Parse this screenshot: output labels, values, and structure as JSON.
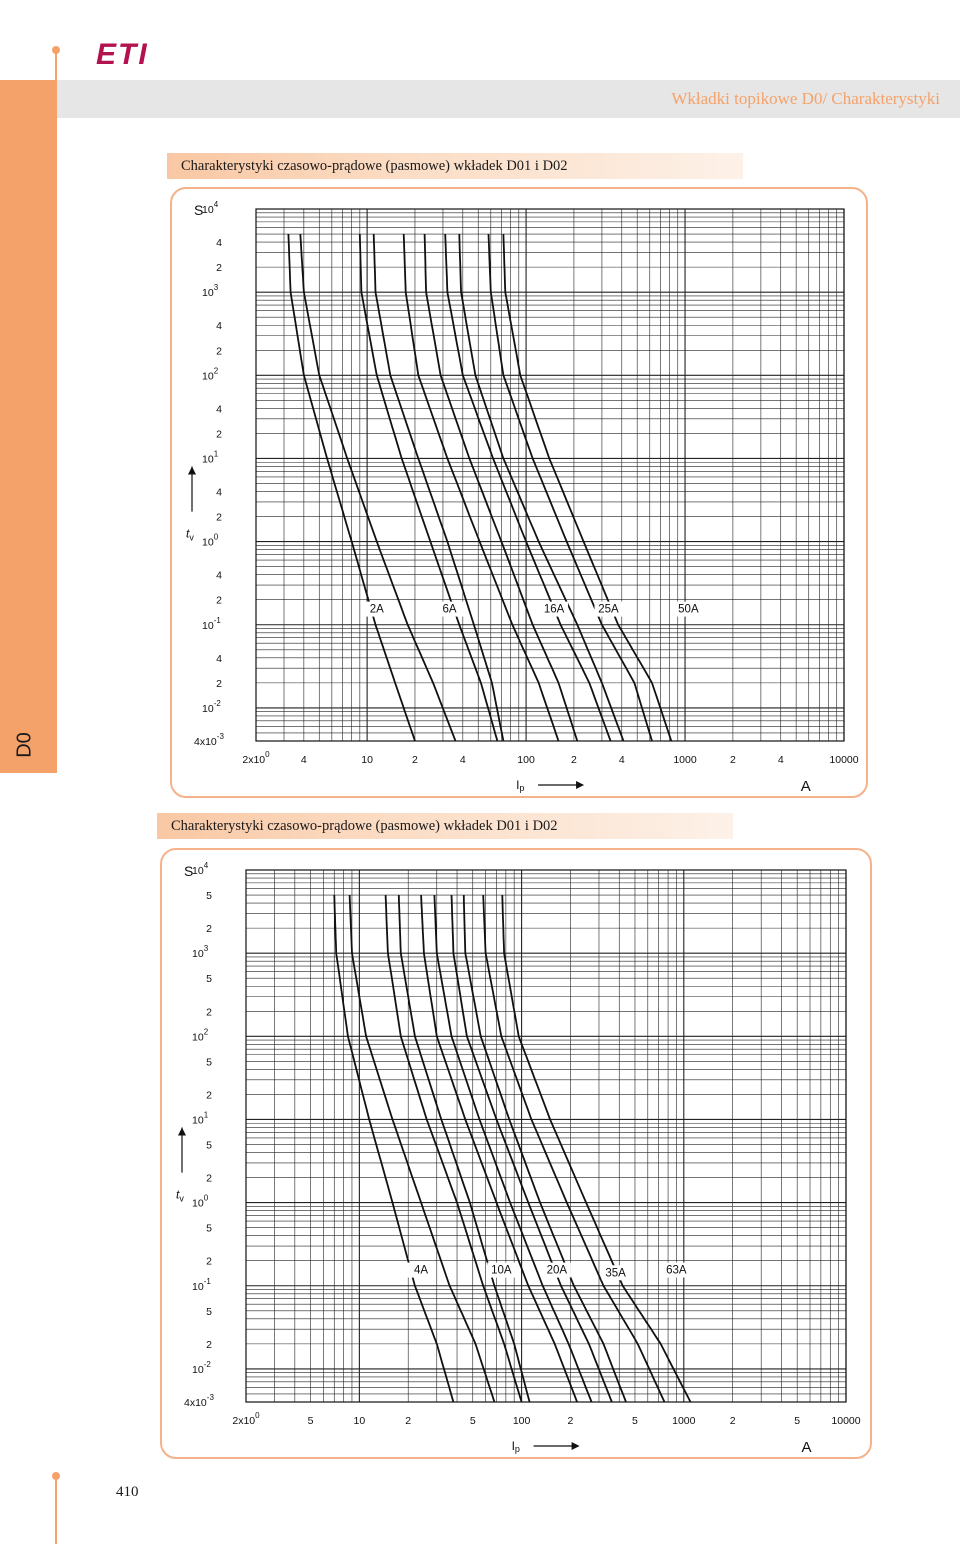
{
  "brand": {
    "logo": "ETI",
    "accent_color": "#f5a26a",
    "logo_color": "#b3124f"
  },
  "header": {
    "title": "Wkładki topikowe D0/ Charakterystyki"
  },
  "side_tab": {
    "label": "D0"
  },
  "sections": [
    {
      "title": "Charakterystyki czasowo-prądowe (pasmowe) wkładek D01 i D02"
    },
    {
      "title": "Charakterystyki czasowo-prądowe (pasmowe) wkładek D01 i D02"
    }
  ],
  "page_number": "410",
  "chart_data": [
    {
      "type": "line",
      "title": "",
      "xscale": "log",
      "yscale": "log",
      "xlim": [
        2,
        10000
      ],
      "ylim": [
        0.004,
        10000
      ],
      "ylabel": "tv",
      "y_unit": "S",
      "xlabel": "Ip",
      "x_unit": "A",
      "grid": true,
      "y_ticks": [
        {
          "v": 10000,
          "base": "10",
          "exp": "4",
          "prefix": ""
        },
        {
          "v": 4000,
          "text": "4"
        },
        {
          "v": 2000,
          "text": "2"
        },
        {
          "v": 1000,
          "base": "10",
          "exp": "3",
          "prefix": ""
        },
        {
          "v": 400,
          "text": "4"
        },
        {
          "v": 200,
          "text": "2"
        },
        {
          "v": 100,
          "base": "10",
          "exp": "2",
          "prefix": ""
        },
        {
          "v": 40,
          "text": "4"
        },
        {
          "v": 20,
          "text": "2"
        },
        {
          "v": 10,
          "base": "10",
          "exp": "1",
          "prefix": ""
        },
        {
          "v": 4,
          "text": "4"
        },
        {
          "v": 2,
          "text": "2"
        },
        {
          "v": 1,
          "base": "10",
          "exp": "0",
          "prefix": ""
        },
        {
          "v": 0.4,
          "text": "4"
        },
        {
          "v": 0.2,
          "text": "2"
        },
        {
          "v": 0.1,
          "base": "10",
          "exp": "-1",
          "prefix": ""
        },
        {
          "v": 0.04,
          "text": "4"
        },
        {
          "v": 0.02,
          "text": "2"
        },
        {
          "v": 0.01,
          "base": "10",
          "exp": "-2",
          "prefix": ""
        },
        {
          "v": 0.004,
          "base": "10",
          "exp": "-3",
          "prefix": "4x"
        }
      ],
      "x_ticks": [
        {
          "v": 2,
          "base": "10",
          "exp": "0",
          "prefix": "2x"
        },
        {
          "v": 4,
          "text": "4"
        },
        {
          "v": 10,
          "text": "10"
        },
        {
          "v": 20,
          "text": "2"
        },
        {
          "v": 40,
          "text": "4"
        },
        {
          "v": 100,
          "text": "100"
        },
        {
          "v": 200,
          "text": "2"
        },
        {
          "v": 400,
          "text": "4"
        },
        {
          "v": 1000,
          "text": "1000"
        },
        {
          "v": 2000,
          "text": "2"
        },
        {
          "v": 4000,
          "text": "4"
        },
        {
          "v": 10000,
          "text": "10000"
        }
      ],
      "series": [
        {
          "x": [
            3.2,
            3.3,
            4.0,
            5.6,
            8.0,
            11.3,
            15.0,
            20.0
          ],
          "y": [
            5000,
            1000,
            100,
            10,
            1,
            0.1,
            0.02,
            0.004
          ]
        },
        {
          "x": [
            3.8,
            4.0,
            5.0,
            7.5,
            11.5,
            18.0,
            26.0,
            36.0
          ],
          "y": [
            5000,
            1000,
            100,
            10,
            1,
            0.1,
            0.02,
            0.004
          ]
        },
        {
          "x": [
            9.0,
            9.2,
            11.5,
            16.5,
            25.0,
            38.0,
            52.0,
            66.0
          ],
          "y": [
            5000,
            1000,
            100,
            10,
            1,
            0.1,
            0.02,
            0.004
          ]
        },
        {
          "x": [
            11.0,
            11.3,
            14.0,
            21.0,
            32.0,
            47.0,
            61.0,
            72.0
          ],
          "y": [
            5000,
            1000,
            100,
            10,
            1,
            0.1,
            0.02,
            0.004
          ]
        },
        {
          "x": [
            17.0,
            17.5,
            21.0,
            32.0,
            51.0,
            82.0,
            120.0,
            160.0
          ],
          "y": [
            5000,
            1000,
            100,
            10,
            1,
            0.1,
            0.02,
            0.004
          ]
        },
        {
          "x": [
            23.0,
            23.5,
            29.0,
            44.0,
            70.0,
            110.0,
            160.0,
            210.0
          ],
          "y": [
            5000,
            1000,
            100,
            10,
            1,
            0.1,
            0.02,
            0.004
          ]
        },
        {
          "x": [
            31.0,
            32.0,
            40.0,
            62.0,
            100.0,
            165.0,
            250.0,
            340.0
          ],
          "y": [
            5000,
            1000,
            100,
            10,
            1,
            0.1,
            0.02,
            0.004
          ]
        },
        {
          "x": [
            38.0,
            39.0,
            48.0,
            72.0,
            120.0,
            210.0,
            300.0,
            410.0
          ],
          "y": [
            5000,
            1000,
            100,
            10,
            1,
            0.1,
            0.02,
            0.004
          ]
        },
        {
          "x": [
            58.0,
            60.0,
            72.0,
            110.0,
            180.0,
            300.0,
            480.0,
            620.0
          ],
          "y": [
            5000,
            1000,
            100,
            10,
            1,
            0.1,
            0.02,
            0.004
          ]
        },
        {
          "x": [
            72.0,
            74.0,
            92.0,
            140.0,
            230.0,
            380.0,
            620.0,
            820.0
          ],
          "y": [
            5000,
            1000,
            100,
            10,
            1,
            0.1,
            0.02,
            0.004
          ]
        }
      ],
      "annotations": [
        {
          "text": "2A",
          "x": 11.5,
          "y": 0.14
        },
        {
          "text": "6A",
          "x": 33,
          "y": 0.14
        },
        {
          "text": "16A",
          "x": 150,
          "y": 0.14
        },
        {
          "text": "25A",
          "x": 330,
          "y": 0.14
        },
        {
          "text": "50A",
          "x": 1050,
          "y": 0.14
        }
      ]
    },
    {
      "type": "line",
      "title": "",
      "xscale": "log",
      "yscale": "log",
      "xlim": [
        2,
        10000
      ],
      "ylim": [
        0.004,
        10000
      ],
      "ylabel": "tv",
      "y_unit": "S",
      "xlabel": "Ip",
      "x_unit": "A",
      "grid": true,
      "y_ticks": [
        {
          "v": 10000,
          "base": "10",
          "exp": "4",
          "prefix": ""
        },
        {
          "v": 5000,
          "text": "5"
        },
        {
          "v": 2000,
          "text": "2"
        },
        {
          "v": 1000,
          "base": "10",
          "exp": "3",
          "prefix": ""
        },
        {
          "v": 500,
          "text": "5"
        },
        {
          "v": 200,
          "text": "2"
        },
        {
          "v": 100,
          "base": "10",
          "exp": "2",
          "prefix": ""
        },
        {
          "v": 50,
          "text": "5"
        },
        {
          "v": 20,
          "text": "2"
        },
        {
          "v": 10,
          "base": "10",
          "exp": "1",
          "prefix": ""
        },
        {
          "v": 5,
          "text": "5"
        },
        {
          "v": 2,
          "text": "2"
        },
        {
          "v": 1,
          "base": "10",
          "exp": "0",
          "prefix": ""
        },
        {
          "v": 0.5,
          "text": "5"
        },
        {
          "v": 0.2,
          "text": "2"
        },
        {
          "v": 0.1,
          "base": "10",
          "exp": "-1",
          "prefix": ""
        },
        {
          "v": 0.05,
          "text": "5"
        },
        {
          "v": 0.02,
          "text": "2"
        },
        {
          "v": 0.01,
          "base": "10",
          "exp": "-2",
          "prefix": ""
        },
        {
          "v": 0.004,
          "base": "10",
          "exp": "-3",
          "prefix": "4x"
        }
      ],
      "x_ticks": [
        {
          "v": 2,
          "base": "10",
          "exp": "0",
          "prefix": "2x"
        },
        {
          "v": 5,
          "text": "5"
        },
        {
          "v": 10,
          "text": "10"
        },
        {
          "v": 20,
          "text": "2"
        },
        {
          "v": 50,
          "text": "5"
        },
        {
          "v": 100,
          "text": "100"
        },
        {
          "v": 200,
          "text": "2"
        },
        {
          "v": 500,
          "text": "5"
        },
        {
          "v": 1000,
          "text": "1000"
        },
        {
          "v": 2000,
          "text": "2"
        },
        {
          "v": 5000,
          "text": "5"
        },
        {
          "v": 10000,
          "text": "10000"
        }
      ],
      "series": [
        {
          "x": [
            7.0,
            7.2,
            8.5,
            11.5,
            16.0,
            22.0,
            30.0,
            38.0
          ],
          "y": [
            5000,
            1000,
            100,
            10,
            1,
            0.1,
            0.02,
            0.004
          ]
        },
        {
          "x": [
            8.7,
            9.0,
            11.0,
            16.0,
            24.0,
            36.0,
            52.0,
            68.0
          ],
          "y": [
            5000,
            1000,
            100,
            10,
            1,
            0.1,
            0.02,
            0.004
          ]
        },
        {
          "x": [
            14.5,
            15.0,
            18.0,
            26.0,
            40.0,
            58.0,
            78.0,
            100.0
          ],
          "y": [
            5000,
            1000,
            100,
            10,
            1,
            0.1,
            0.02,
            0.004
          ]
        },
        {
          "x": [
            17.5,
            18.0,
            22.0,
            32.0,
            48.0,
            68.0,
            90.0,
            112.0
          ],
          "y": [
            5000,
            1000,
            100,
            10,
            1,
            0.1,
            0.02,
            0.004
          ]
        },
        {
          "x": [
            24.0,
            25.0,
            30.0,
            45.0,
            70.0,
            110.0,
            160.0,
            220.0
          ],
          "y": [
            5000,
            1000,
            100,
            10,
            1,
            0.1,
            0.02,
            0.004
          ]
        },
        {
          "x": [
            29.0,
            30.0,
            37.0,
            55.0,
            85.0,
            135.0,
            195.0,
            270.0
          ],
          "y": [
            5000,
            1000,
            100,
            10,
            1,
            0.1,
            0.02,
            0.004
          ]
        },
        {
          "x": [
            37.0,
            38.0,
            46.0,
            70.0,
            110.0,
            175.0,
            260.0,
            360.0
          ],
          "y": [
            5000,
            1000,
            100,
            10,
            1,
            0.1,
            0.02,
            0.004
          ]
        },
        {
          "x": [
            44.0,
            45.0,
            56.0,
            84.0,
            130.0,
            210.0,
            320.0,
            440.0
          ],
          "y": [
            5000,
            1000,
            100,
            10,
            1,
            0.1,
            0.02,
            0.004
          ]
        },
        {
          "x": [
            58.0,
            60.0,
            75.0,
            115.0,
            190.0,
            320.0,
            520.0,
            760.0
          ],
          "y": [
            5000,
            1000,
            100,
            10,
            1,
            0.1,
            0.02,
            0.004
          ]
        },
        {
          "x": [
            76.0,
            78.0,
            96.0,
            150.0,
            250.0,
            420.0,
            720.0,
            1100.0
          ],
          "y": [
            5000,
            1000,
            100,
            10,
            1,
            0.1,
            0.02,
            0.004
          ]
        }
      ],
      "annotations": [
        {
          "text": "4A",
          "x": 24,
          "y": 0.14
        },
        {
          "text": "10A",
          "x": 75,
          "y": 0.14
        },
        {
          "text": "20A",
          "x": 165,
          "y": 0.14
        },
        {
          "text": "35A",
          "x": 380,
          "y": 0.13
        },
        {
          "text": "63A",
          "x": 900,
          "y": 0.14
        }
      ]
    }
  ]
}
